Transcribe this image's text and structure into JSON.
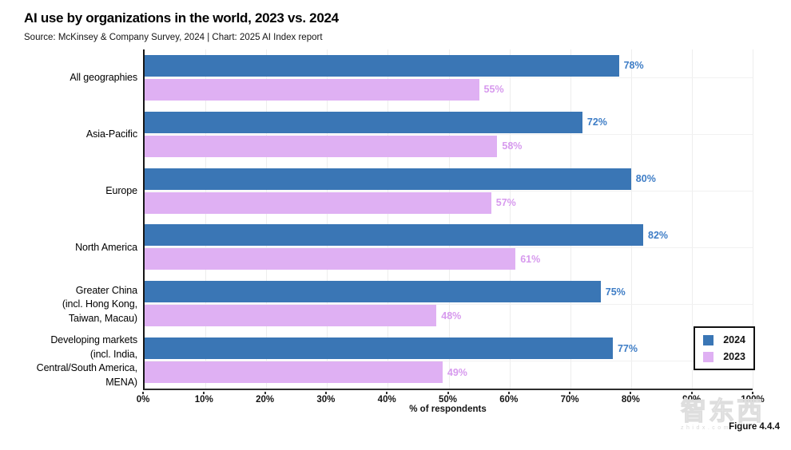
{
  "header": {
    "title": "AI use by organizations in the world, 2023 vs. 2024",
    "subtitle": "Source: McKinsey & Company Survey, 2024 | Chart: 2025 AI Index report"
  },
  "chart_data": {
    "type": "bar",
    "orientation": "horizontal",
    "title": "AI use by organizations in the world, 2023 vs. 2024",
    "categories": [
      "All geographies",
      "Asia-Pacific",
      "Europe",
      "North America",
      "Greater China (incl. Hong Kong, Taiwan, Macau)",
      "Developing markets (incl. India, Central/South America, MENA)"
    ],
    "category_label_lines": [
      [
        "All geographies"
      ],
      [
        "Asia-Pacific"
      ],
      [
        "Europe"
      ],
      [
        "North America"
      ],
      [
        "Greater China",
        "(incl. Hong Kong,",
        "Taiwan, Macau)"
      ],
      [
        "Developing markets",
        "(incl. India,",
        "Central/South America,",
        "MENA)"
      ]
    ],
    "series": [
      {
        "name": "2024",
        "color": "#3A76B5",
        "label_color": "#3E7DC6",
        "values": [
          78,
          72,
          80,
          82,
          75,
          77
        ]
      },
      {
        "name": "2023",
        "color": "#DFB0F3",
        "label_color": "#D79AEE",
        "values": [
          55,
          58,
          57,
          61,
          48,
          49
        ]
      }
    ],
    "value_suffix": "%",
    "xlabel": "% of respondents",
    "ylabel": "",
    "xlim": [
      0,
      100
    ],
    "x_ticks": [
      "0%",
      "10%",
      "20%",
      "30%",
      "40%",
      "50%",
      "60%",
      "70%",
      "80%",
      "90%",
      "100%"
    ],
    "grid": "vertical gridlines at each 10% tick, horizontal gridline at each category center",
    "legend_position": "lower right inside plot"
  },
  "footer": {
    "figure_label": "Figure 4.4.4",
    "watermark": "智东西",
    "watermark_sub": "zhidx.com"
  }
}
